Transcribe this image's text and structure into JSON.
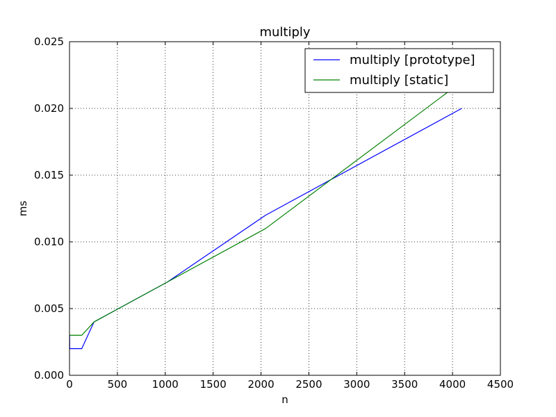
{
  "chart_data": {
    "type": "line",
    "title": "multiply",
    "xlabel": "n",
    "ylabel": "ms",
    "xlim": [
      0,
      4500
    ],
    "ylim": [
      0,
      0.025
    ],
    "xticks": [
      0,
      500,
      1000,
      1500,
      2000,
      2500,
      3000,
      3500,
      4000,
      4500
    ],
    "xtick_labels": [
      "0",
      "500",
      "1000",
      "1500",
      "2000",
      "2500",
      "3000",
      "3500",
      "4000",
      "4500"
    ],
    "yticks": [
      0,
      0.005,
      0.01,
      0.015,
      0.02,
      0.025
    ],
    "ytick_labels": [
      "0.000",
      "0.005",
      "0.010",
      "0.015",
      "0.020",
      "0.025"
    ],
    "grid": true,
    "legend_position": "top-right",
    "series": [
      {
        "name": "multiply [prototype]",
        "color": "#0000ff",
        "x": [
          1,
          2,
          4,
          8,
          16,
          32,
          64,
          128,
          256,
          512,
          1024,
          2048,
          4096
        ],
        "y": [
          0.003,
          0.002,
          0.002,
          0.002,
          0.002,
          0.002,
          0.002,
          0.002,
          0.004,
          0.005,
          0.007,
          0.012,
          0.02
        ]
      },
      {
        "name": "multiply [static]",
        "color": "#008000",
        "x": [
          1,
          2,
          4,
          8,
          16,
          32,
          64,
          128,
          256,
          512,
          1024,
          2048,
          4096
        ],
        "y": [
          0.003,
          0.003,
          0.003,
          0.003,
          0.003,
          0.003,
          0.003,
          0.003,
          0.004,
          0.005,
          0.007,
          0.011,
          0.022
        ]
      }
    ]
  }
}
